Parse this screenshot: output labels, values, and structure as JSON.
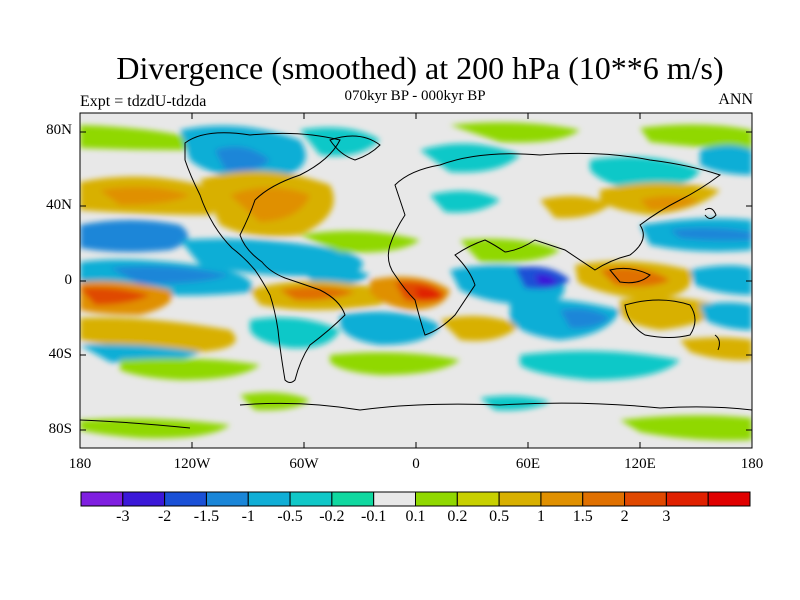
{
  "title": "Divergence (smoothed) at 200 hPa (10**6 m/s)",
  "subtitle": "070kyr BP - 000kyr BP",
  "left_label": "Expt = tdzdU-tdzda",
  "right_label": "ANN",
  "lat_labels": [
    "80N",
    "40N",
    "0",
    "40S",
    "80S"
  ],
  "lon_labels": [
    "180",
    "120W",
    "60W",
    "0",
    "60E",
    "120E",
    "180"
  ],
  "colorbar": {
    "colors": [
      "#7f1fe0",
      "#3b18d8",
      "#1a50d6",
      "#1a86d8",
      "#10aed6",
      "#10c8c8",
      "#10d8a0",
      "#e8e8e8",
      "#90d800",
      "#c8d000",
      "#d8b000",
      "#e09000",
      "#e07000",
      "#e04800",
      "#e02000",
      "#e00000"
    ],
    "labels": [
      "-3",
      "-2",
      "-1.5",
      "-1",
      "-0.5",
      "-0.2",
      "-0.1",
      "0.1",
      "0.2",
      "0.5",
      "1",
      "1.5",
      "2",
      "3"
    ]
  }
}
